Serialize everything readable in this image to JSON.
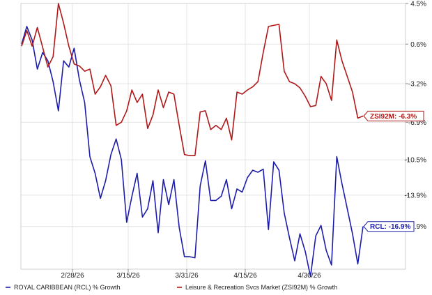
{
  "chart_data": {
    "type": "line",
    "x_tick_labels": [
      "2/28/26",
      "3/15/26",
      "3/31/26",
      "4/15/26",
      "4/30/26"
    ],
    "y_tick_labels": [
      "4.5%",
      "0.6%",
      "-3.2%",
      "-6.9%",
      "-10.5%",
      "-13.9%",
      "-16.9%"
    ],
    "ylim": [
      -21,
      4.5
    ],
    "y_ticks": [
      4.5,
      0.6,
      -3.2,
      -6.9,
      -10.5,
      -13.9,
      -16.9
    ],
    "grid": true,
    "legend_position": "bottom",
    "series": [
      {
        "name": "ROYAL CARIBBEAN (RCL) % Growth",
        "color": "#1c1caa",
        "end_label": "RCL: -16.9%",
        "values": [
          0.6,
          2.3,
          1.0,
          -1.8,
          -0.2,
          -1.0,
          -3.0,
          -5.8,
          -1.0,
          -1.6,
          0.2,
          -2.8,
          -5.0,
          -10.2,
          -11.8,
          -14.2,
          -12.5,
          -10.0,
          -8.5,
          -10.5,
          -16.5,
          -14.0,
          -11.8,
          -16.0,
          -15.2,
          -12.5,
          -17.5,
          -12.4,
          -14.8,
          -12.4,
          -17.0,
          -19.8,
          -19.8,
          -19.9,
          -13.0,
          -10.6,
          -14.4,
          -14.4,
          -14.0,
          -12.4,
          -15.2,
          -13.3,
          -13.6,
          -12.2,
          -11.5,
          -11.7,
          -11.4,
          -17.2,
          -10.7,
          -11.5,
          -15.6,
          -18.0,
          -20.2,
          -17.6,
          -19.3,
          -21.7,
          -17.8,
          -16.8,
          -19.2,
          -20.6,
          -10.2,
          -12.8,
          -15.2,
          -17.6,
          -20.5,
          -16.9
        ]
      },
      {
        "name": "Leisure & Recreation Svcs Market (ZSI92M) % Growth",
        "color": "#b01818",
        "end_label": "ZSI92M: -6.3%",
        "values": [
          0.4,
          1.9,
          0.4,
          2.2,
          0.3,
          -1.6,
          -0.6,
          4.5,
          2.6,
          0.4,
          -1.3,
          -1.5,
          -2.0,
          -1.8,
          -4.2,
          -3.5,
          -2.4,
          -3.4,
          -7.2,
          -6.9,
          -5.8,
          -3.8,
          -5.0,
          -4.2,
          -7.5,
          -6.2,
          -3.8,
          -5.5,
          -4.0,
          -4.2,
          -7.2,
          -10.0,
          -10.1,
          -10.1,
          -5.9,
          -5.8,
          -7.6,
          -7.2,
          -7.6,
          -6.5,
          -8.6,
          -4.0,
          -4.2,
          -3.8,
          -3.5,
          -3.0,
          -0.2,
          2.3,
          2.4,
          2.5,
          -2.0,
          -3.0,
          -3.2,
          -3.6,
          -4.4,
          -5.4,
          -5.3,
          -2.5,
          -3.2,
          -4.8,
          1.0,
          -1.0,
          -2.5,
          -4.0,
          -6.5,
          -6.3
        ]
      }
    ]
  }
}
